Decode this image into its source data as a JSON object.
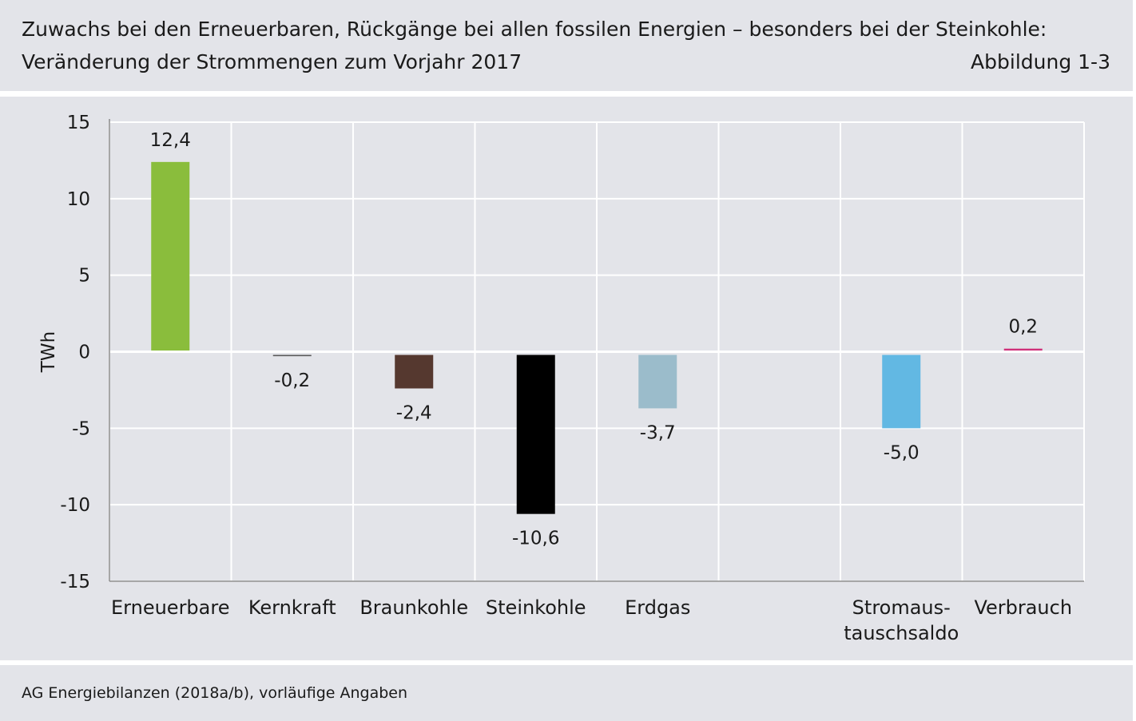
{
  "header": {
    "title": "Zuwachs bei den Erneuerbaren, Rückgänge bei allen fossilen Energien – besonders bei der Steinkohle:",
    "subtitle": "Veränderung der Strommengen zum Vorjahr 2017",
    "figure_label": "Abbildung 1-3"
  },
  "footer": {
    "source": "AG Energiebilanzen (2018a/b), vorläufige Angaben"
  },
  "chart_data": {
    "type": "bar",
    "title": "Veränderung der Strommengen zum Vorjahr 2017",
    "ylabel": "TWh",
    "xlabel": "",
    "ylim": [
      -15,
      15
    ],
    "yticks": [
      15,
      10,
      5,
      0,
      -5,
      -10,
      -15
    ],
    "grid": true,
    "legend": "none",
    "categories": [
      [
        "Erneuerbare"
      ],
      [
        "Kernkraft"
      ],
      [
        "Braunkohle"
      ],
      [
        "Steinkohle"
      ],
      [
        "Erdgas"
      ],
      [
        ""
      ],
      [
        "Stromaus-",
        "tauschsaldo"
      ],
      [
        "Verbrauch"
      ]
    ],
    "values": [
      12.4,
      -0.2,
      -2.4,
      -10.6,
      -3.7,
      null,
      -5.0,
      0.2
    ],
    "value_labels": [
      "12,4",
      "-0,2",
      "-2,4",
      "-10,6",
      "-3,7",
      "",
      "-5,0",
      "0,2"
    ],
    "colors": [
      "#8abd3c",
      "#5a5a5a",
      "#55382f",
      "#000000",
      "#9bbccb",
      "",
      "#62b8e3",
      "#d0307a"
    ]
  }
}
